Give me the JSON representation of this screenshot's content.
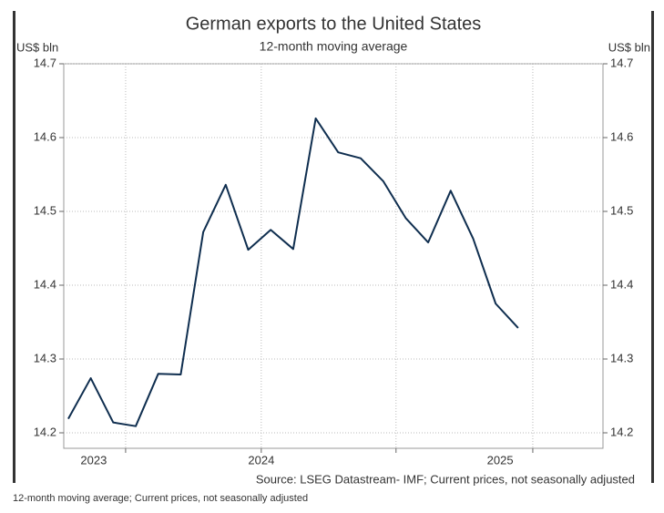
{
  "chart_data": {
    "type": "line",
    "title": "German exports to the United States",
    "subtitle": "12-month moving average",
    "y_unit_left": "US$ bln",
    "y_unit_right": "US$ bln",
    "source": "Source: LSEG Datastream- IMF; Current prices, not seasonally adjusted",
    "caption": "12-month moving average; Current prices, not seasonally adjusted",
    "x": [
      0,
      1,
      2,
      3,
      4,
      5,
      6,
      7,
      8,
      9,
      10,
      11,
      12,
      13,
      14,
      15,
      16,
      17,
      18,
      19,
      20
    ],
    "series": [
      {
        "name": "German exports to the United States",
        "color": "#0f2e4f",
        "values": [
          14.219,
          14.274,
          14.214,
          14.209,
          14.28,
          14.279,
          14.472,
          14.536,
          14.448,
          14.475,
          14.449,
          14.626,
          14.58,
          14.572,
          14.541,
          14.491,
          14.458,
          14.528,
          14.463,
          14.375,
          14.342
        ]
      }
    ],
    "xlim": [
      -0.2,
      23.77
    ],
    "xgrid": [
      2.55,
      8.58,
      14.57,
      20.65
    ],
    "xticks": [
      {
        "value": 1.13,
        "label": "2023"
      },
      {
        "value": 8.58,
        "label": "2024"
      },
      {
        "value": 19.2,
        "label": "2025"
      }
    ],
    "ylim": [
      14.179,
      14.7
    ],
    "yticks": [
      14.2,
      14.3,
      14.4,
      14.5,
      14.6,
      14.7
    ],
    "grid": true
  }
}
